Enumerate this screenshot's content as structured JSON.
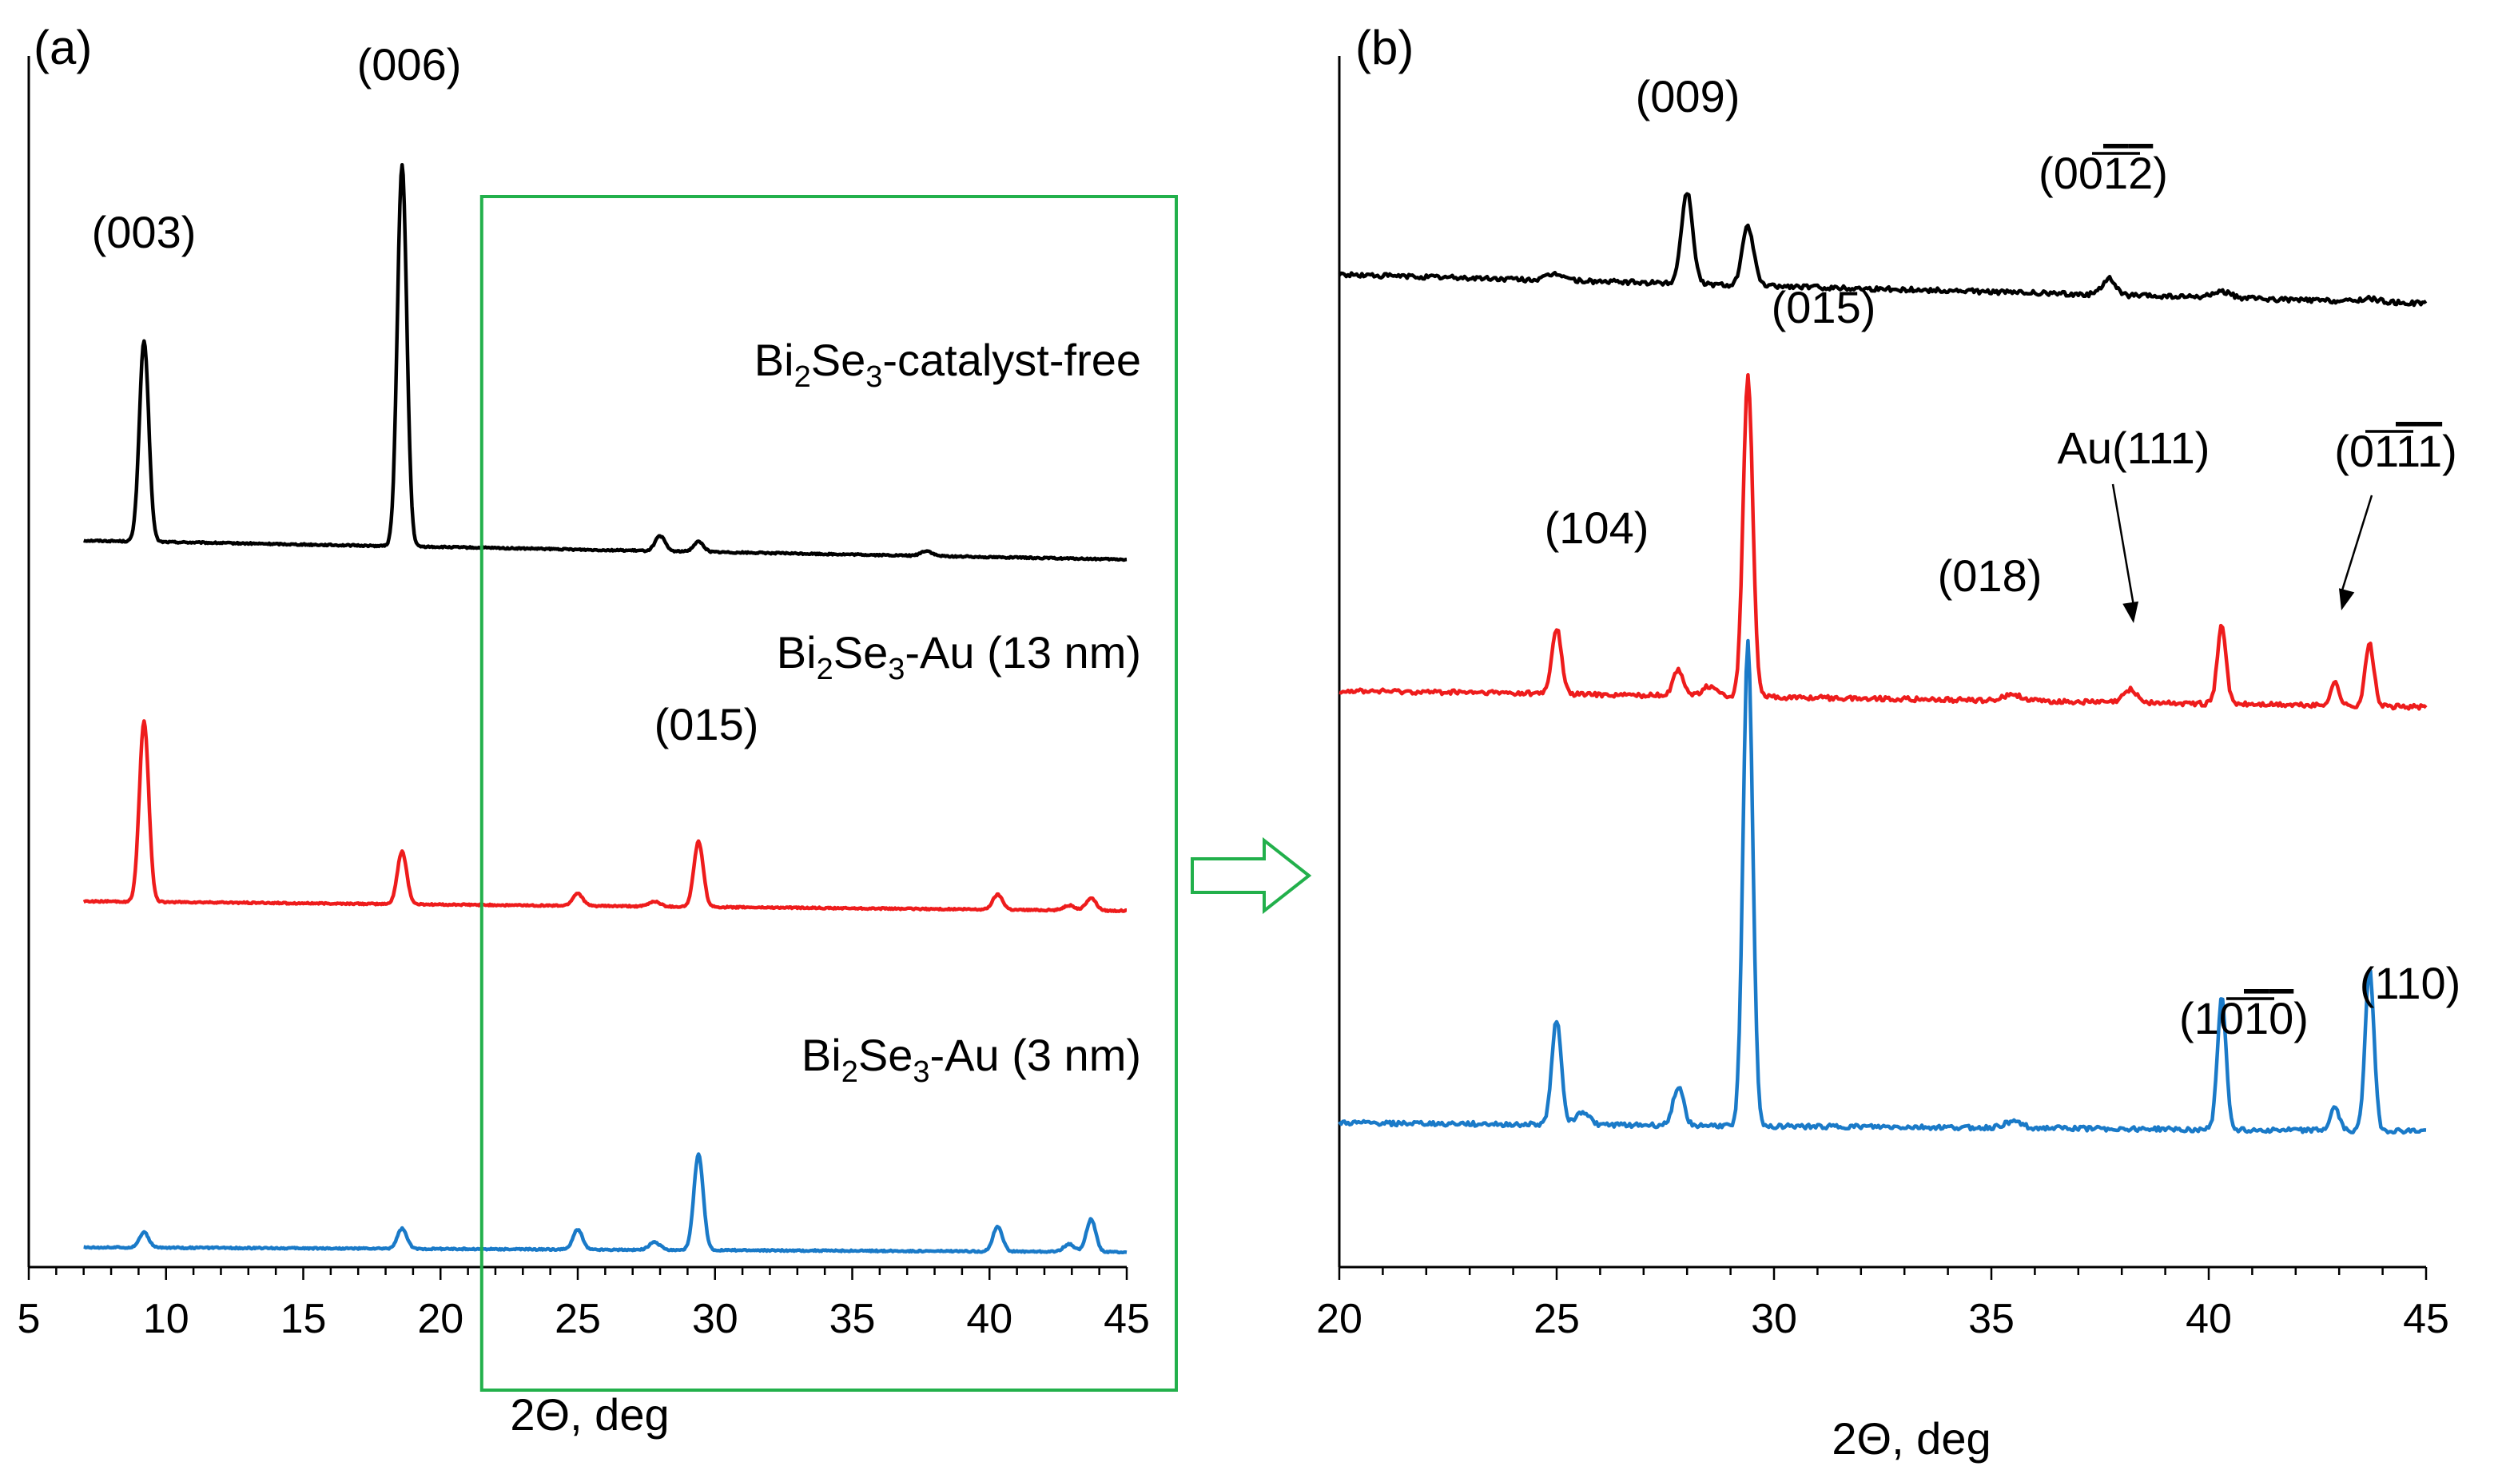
{
  "chart_data": [
    {
      "type": "line",
      "panel_label": "(a)",
      "xlabel": "2Θ, deg",
      "ylabel": "",
      "xlim": [
        5,
        45
      ],
      "ylim": [
        0,
        4.7
      ],
      "x_ticks": [
        "5",
        "10",
        "15",
        "20",
        "25",
        "30",
        "35",
        "40",
        "45"
      ],
      "series": [
        {
          "name": "Bi2Se3-catalyst-free",
          "legend": {
            "prefix": "Bi",
            "sub1": "2",
            "mid": "Se",
            "sub2": "3",
            "suffix": "-catalyst-free"
          },
          "color": "#000000",
          "baseline": 2.9,
          "slope": -0.002,
          "peaks": [
            [
              9.2,
              0.8,
              0.17
            ],
            [
              18.6,
              1.52,
              0.17
            ],
            [
              28.0,
              0.06,
              0.18
            ],
            [
              29.4,
              0.04,
              0.18
            ],
            [
              37.7,
              0.02,
              0.2
            ]
          ]
        },
        {
          "name": "Bi2Se3-Au (13 nm)",
          "legend": {
            "prefix": "Bi",
            "sub1": "2",
            "mid": "Se",
            "sub2": "3",
            "suffix": "-Au (13 nm)"
          },
          "color": "#ee1c1c",
          "baseline": 1.46,
          "slope": -0.001,
          "peaks": [
            [
              9.2,
              0.72,
              0.17
            ],
            [
              18.6,
              0.21,
              0.17
            ],
            [
              25.0,
              0.05,
              0.18
            ],
            [
              27.8,
              0.02,
              0.2
            ],
            [
              29.4,
              0.26,
              0.17
            ],
            [
              40.3,
              0.06,
              0.18
            ],
            [
              42.9,
              0.02,
              0.2
            ],
            [
              43.7,
              0.05,
              0.18
            ]
          ]
        },
        {
          "name": "Bi2Se3-Au (3 nm)",
          "legend": {
            "prefix": "Bi",
            "sub1": "2",
            "mid": "Se",
            "sub2": "3",
            "suffix": "-Au (3 nm)"
          },
          "color": "#1a7ac8",
          "baseline": 0.08,
          "slope": -0.0005,
          "peaks": [
            [
              9.2,
              0.06,
              0.17
            ],
            [
              18.6,
              0.08,
              0.17
            ],
            [
              25.0,
              0.08,
              0.17
            ],
            [
              27.8,
              0.03,
              0.2
            ],
            [
              29.4,
              0.38,
              0.17
            ],
            [
              40.3,
              0.1,
              0.17
            ],
            [
              42.9,
              0.03,
              0.2
            ],
            [
              43.7,
              0.13,
              0.17
            ]
          ]
        }
      ],
      "annotations": [
        {
          "text": "(003)",
          "x": 9.2,
          "series": 0
        },
        {
          "text": "(006)",
          "x": 18.6,
          "series": 0
        },
        {
          "text": "(015)",
          "x": 29.4,
          "series": 1
        }
      ],
      "highlight_range": [
        21.5,
        45
      ],
      "highlight_color": "#22b04b"
    },
    {
      "type": "line",
      "panel_label": "(b)",
      "xlabel": "2Θ, deg",
      "ylabel": "",
      "xlim": [
        20,
        45
      ],
      "ylim": [
        0,
        3.6
      ],
      "x_ticks": [
        "20",
        "25",
        "30",
        "35",
        "40",
        "45"
      ],
      "series": [
        {
          "name": "Bi2Se3-catalyst-free",
          "color": "#000000",
          "baseline": 3.03,
          "slope": -0.0035,
          "peaks": [
            [
              25.0,
              0.02,
              0.2
            ],
            [
              28.0,
              0.28,
              0.13
            ],
            [
              29.4,
              0.18,
              0.13
            ],
            [
              37.7,
              0.05,
              0.15
            ],
            [
              40.3,
              0.02,
              0.2
            ],
            [
              43.7,
              0.01,
              0.2
            ]
          ]
        },
        {
          "name": "Bi2Se3-Au (13 nm)",
          "color": "#ee1c1c",
          "baseline": 1.76,
          "slope": -0.002,
          "peaks": [
            [
              25.0,
              0.2,
              0.11
            ],
            [
              27.8,
              0.08,
              0.12
            ],
            [
              28.5,
              0.03,
              0.15
            ],
            [
              29.4,
              0.98,
              0.11
            ],
            [
              35.5,
              0.02,
              0.2
            ],
            [
              38.2,
              0.04,
              0.15
            ],
            [
              40.3,
              0.24,
              0.1
            ],
            [
              42.9,
              0.07,
              0.1
            ],
            [
              43.7,
              0.19,
              0.1
            ]
          ]
        },
        {
          "name": "Bi2Se3-Au (3 nm)",
          "color": "#1a7ac8",
          "baseline": 0.44,
          "slope": -0.001,
          "peaks": [
            [
              25.0,
              0.32,
              0.11
            ],
            [
              25.6,
              0.04,
              0.15
            ],
            [
              27.8,
              0.12,
              0.12
            ],
            [
              29.4,
              1.48,
              0.11
            ],
            [
              35.5,
              0.02,
              0.2
            ],
            [
              40.3,
              0.4,
              0.1
            ],
            [
              42.9,
              0.07,
              0.1
            ],
            [
              43.7,
              0.5,
              0.1
            ]
          ]
        }
      ],
      "annotations": [
        {
          "text": "(009)",
          "x": 28.0,
          "series": 0
        },
        {
          "text": "(0012)",
          "display": {
            "plain": "(00",
            "bars": [
              "1",
              "2"
            ],
            "close": ")"
          },
          "x": 37.7,
          "series": 0
        },
        {
          "text": "(015)",
          "x": 29.4,
          "series": 1
        },
        {
          "text": "(104)",
          "x": 25.0,
          "series": 1
        },
        {
          "text": "(018)",
          "x": 35.5,
          "series": 1
        },
        {
          "text": "Au(111)",
          "x": 38.2,
          "series": 1,
          "arrow": true
        },
        {
          "text": "(0111)",
          "display": {
            "plain": "(01",
            "bars": [
              "1",
              "1"
            ],
            "close": ")"
          },
          "x": 42.9,
          "series": 1,
          "arrow": true
        },
        {
          "text": "(1010)",
          "display": {
            "plain": "(10",
            "bars": [
              "1",
              "0"
            ],
            "close": ")"
          },
          "x": 40.3,
          "series": 2
        },
        {
          "text": "(110)",
          "x": 43.7,
          "series": 2
        }
      ]
    }
  ],
  "arrow_color": "#22b04b"
}
